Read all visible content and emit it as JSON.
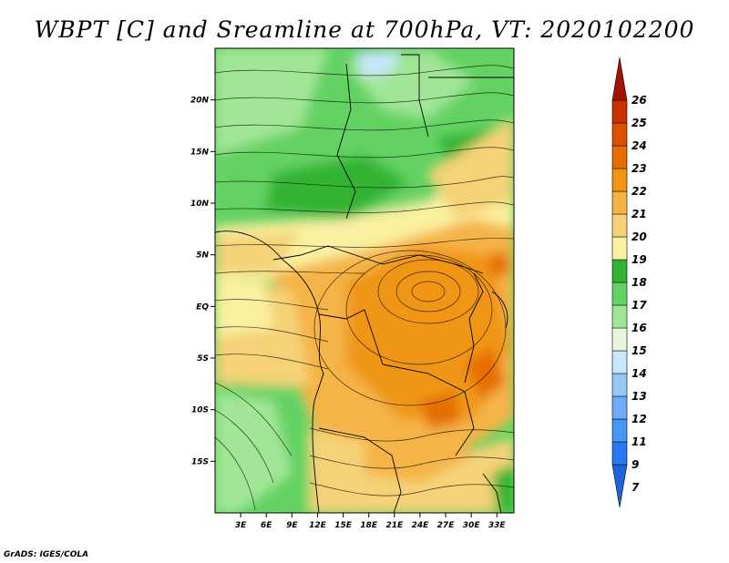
{
  "title": "WBPT [C] and Sreamline at 700hPa, VT: 2020102200",
  "credit": "GrADS: IGES/COLA",
  "map": {
    "lon_range": [
      0,
      35
    ],
    "lat_range": [
      -20,
      25
    ],
    "lat_ticks": [
      {
        "label": "20N",
        "value": 20
      },
      {
        "label": "15N",
        "value": 15
      },
      {
        "label": "10N",
        "value": 10
      },
      {
        "label": "5N",
        "value": 5
      },
      {
        "label": "EQ",
        "value": 0
      },
      {
        "label": "5S",
        "value": -5
      },
      {
        "label": "10S",
        "value": -10
      },
      {
        "label": "15S",
        "value": -15
      }
    ],
    "lon_ticks": [
      {
        "label": "3E",
        "value": 3
      },
      {
        "label": "6E",
        "value": 6
      },
      {
        "label": "9E",
        "value": 9
      },
      {
        "label": "12E",
        "value": 12
      },
      {
        "label": "15E",
        "value": 15
      },
      {
        "label": "18E",
        "value": 18
      },
      {
        "label": "21E",
        "value": 21
      },
      {
        "label": "24E",
        "value": 24
      },
      {
        "label": "27E",
        "value": 27
      },
      {
        "label": "30E",
        "value": 30
      },
      {
        "label": "33E",
        "value": 33
      }
    ]
  },
  "colorbar": {
    "levels": [
      "7",
      "9",
      "11",
      "12",
      "13",
      "14",
      "15",
      "16",
      "17",
      "18",
      "19",
      "20",
      "21",
      "22",
      "23",
      "24",
      "25",
      "26"
    ],
    "colors": [
      "#1e64dc",
      "#2878f0",
      "#4696f5",
      "#6eaaf5",
      "#96c8f5",
      "#c8e6fa",
      "#e6f5dc",
      "#a0e696",
      "#64d264",
      "#32b432",
      "#faf0a0",
      "#f5d278",
      "#f5b446",
      "#f09614",
      "#e66e00",
      "#dc5000",
      "#c83200",
      "#a01400"
    ]
  }
}
